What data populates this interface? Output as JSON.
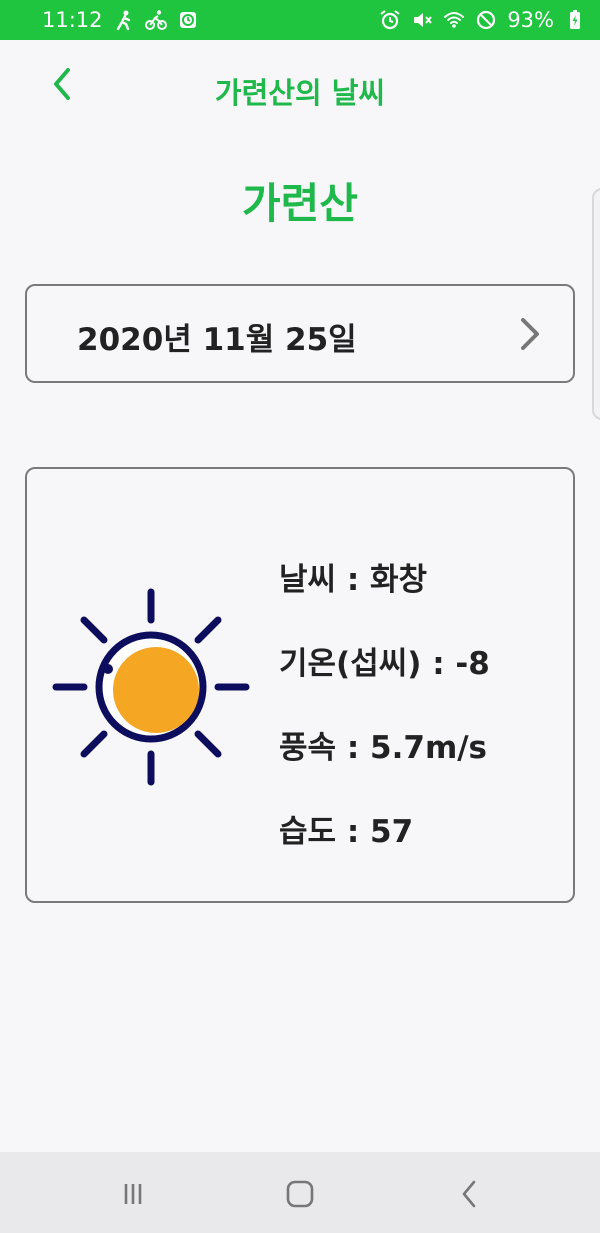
{
  "status_bar": {
    "time": "11:12",
    "battery": "93%",
    "left_icons": [
      "hiking-icon",
      "cycling-icon",
      "timer-app-icon"
    ],
    "right_icons": [
      "alarm-icon",
      "mute-icon",
      "wifi-icon",
      "do-not-disturb-icon"
    ],
    "background": "#1fc53f"
  },
  "app_bar": {
    "title": "가련산의 날씨",
    "back_icon": "chevron-left-icon",
    "accent_color": "#1fb84a"
  },
  "mountain": {
    "name": "가련산"
  },
  "date_selector": {
    "date": "2020년 11월 25일",
    "next_icon": "chevron-right-icon"
  },
  "weather": {
    "icon": "sun-icon",
    "lines": [
      "날씨 : 화창",
      "기온(섭씨) : -8",
      "풍속 : 5.7m/s",
      "습도 : 57"
    ],
    "sun_color": "#f5a623",
    "outline_color": "#0d0d5e"
  },
  "nav_bar": {
    "buttons": [
      "recent-apps-icon",
      "home-icon",
      "back-icon"
    ]
  }
}
